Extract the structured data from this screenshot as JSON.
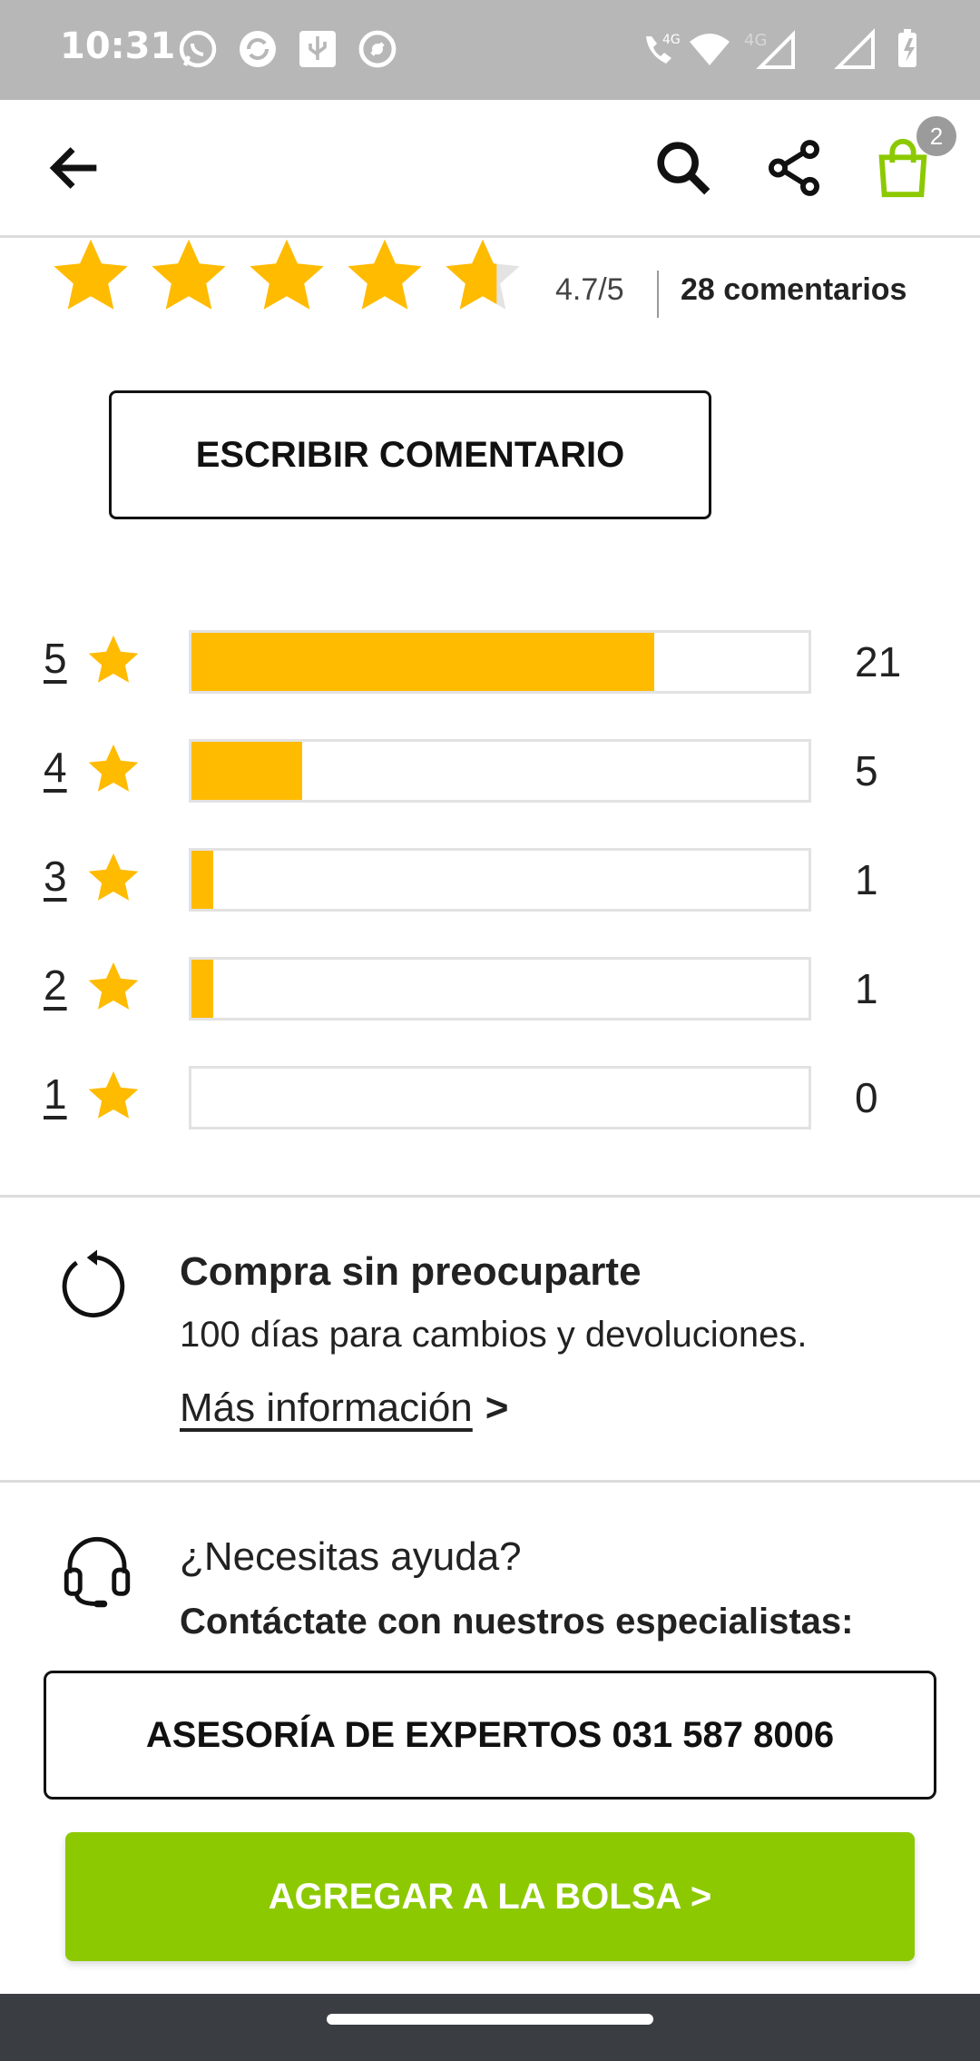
{
  "status_bar": {
    "time": "10:31",
    "icons": [
      "whatsapp-icon",
      "sync-icon",
      "usb-icon",
      "location-off-icon",
      "wifi-calling-icon",
      "wifi-icon",
      "signal-icon",
      "signal-icon",
      "battery-charging-icon"
    ],
    "network_label_1": "4G",
    "network_label_2": "4G"
  },
  "header": {
    "back_icon": "arrow-left-icon",
    "search_icon": "search-icon",
    "share_icon": "share-icon",
    "cart_icon": "shopping-bag-icon",
    "cart_count": "2",
    "accent_color": "#8cc900"
  },
  "rating": {
    "average_text": "4.7/5",
    "average_value": 4.7,
    "max": 5,
    "comments_label": "28 comentarios",
    "star_color": "#ffbb00"
  },
  "write_review_label": "ESCRIBIR COMENTARIO",
  "distribution": [
    {
      "level": "5",
      "count": "21",
      "share": 0.75
    },
    {
      "level": "4",
      "count": "5",
      "share": 0.18
    },
    {
      "level": "3",
      "count": "1",
      "share": 0.036
    },
    {
      "level": "2",
      "count": "1",
      "share": 0.036
    },
    {
      "level": "1",
      "count": "0",
      "share": 0.0
    }
  ],
  "worry_free": {
    "icon": "refresh-icon",
    "title": "Compra sin preocuparte",
    "text": "100 días para cambios y devoluciones.",
    "link": "Más información",
    "link_arrow": ">"
  },
  "help": {
    "icon": "headset-icon",
    "title": "¿Necesitas ayuda?",
    "subtitle": "Contáctate con nuestros especialistas:"
  },
  "expert_button": "ASESORÍA DE EXPERTOS 031 587 8006",
  "add_to_bag_button": "AGREGAR A LA BOLSA >"
}
